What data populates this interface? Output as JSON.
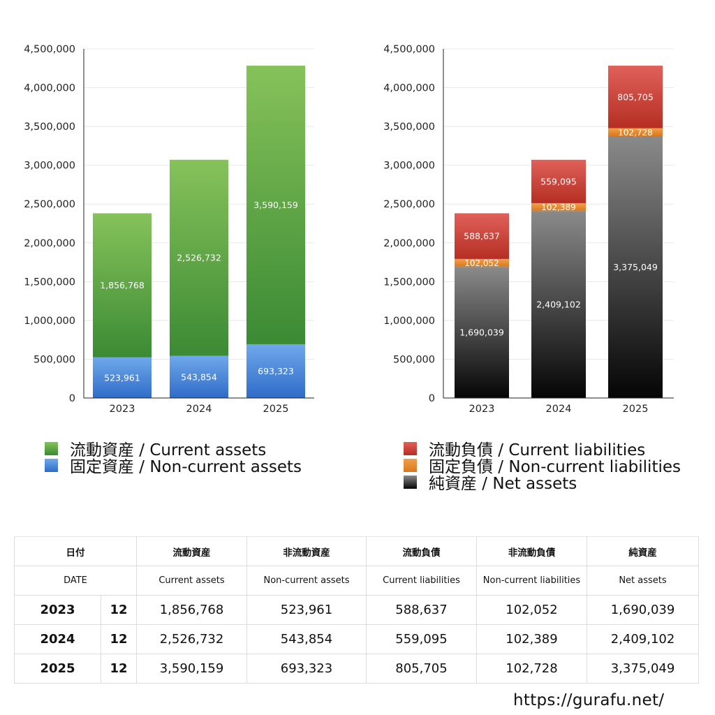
{
  "colors": {
    "current_assets": [
      "#86c25a",
      "#3b8a34"
    ],
    "noncurrent_assets": [
      "#6fa8ea",
      "#2f6cc8"
    ],
    "current_liabilities": [
      "#e0615a",
      "#b52e22"
    ],
    "noncurrent_liabilities": [
      "#f0a048",
      "#d9771e"
    ],
    "net_assets": [
      "#8a8a8a",
      "#050505"
    ],
    "gridline": "#e8e8e8",
    "axis": "#222222"
  },
  "chart_data": [
    {
      "type": "bar",
      "stacked": true,
      "categories": [
        "2023",
        "2024",
        "2025"
      ],
      "ylim": [
        0,
        4500000
      ],
      "yticks": [
        "0",
        "500,000",
        "1,000,000",
        "1,500,000",
        "2,000,000",
        "2,500,000",
        "3,000,000",
        "3,500,000",
        "4,000,000",
        "4,500,000"
      ],
      "grid": true,
      "legend_position": "bottom",
      "series": [
        {
          "name": "固定資産 / Non-current assets",
          "color_key": "noncurrent_assets",
          "values": [
            523961,
            543854,
            693323
          ],
          "labels": [
            "523,961",
            "543,854",
            "693,323"
          ]
        },
        {
          "name": "流動資産 / Current assets",
          "color_key": "current_assets",
          "values": [
            1856768,
            2526732,
            3590159
          ],
          "labels": [
            "1,856,768",
            "2,526,732",
            "3,590,159"
          ]
        }
      ],
      "legend_order": [
        1,
        0
      ]
    },
    {
      "type": "bar",
      "stacked": true,
      "categories": [
        "2023",
        "2024",
        "2025"
      ],
      "ylim": [
        0,
        4500000
      ],
      "yticks": [
        "0",
        "500,000",
        "1,000,000",
        "1,500,000",
        "2,000,000",
        "2,500,000",
        "3,000,000",
        "3,500,000",
        "4,000,000",
        "4,500,000"
      ],
      "grid": true,
      "legend_position": "bottom",
      "series": [
        {
          "name": "純資産 / Net assets",
          "color_key": "net_assets",
          "values": [
            1690039,
            2409102,
            3375049
          ],
          "labels": [
            "1,690,039",
            "2,409,102",
            "3,375,049"
          ]
        },
        {
          "name": "固定負債 / Non-current liabilities",
          "color_key": "noncurrent_liabilities",
          "values": [
            102052,
            102389,
            102728
          ],
          "labels": [
            "102,052",
            "102,389",
            "102,728"
          ]
        },
        {
          "name": "流動負債 / Current liabilities",
          "color_key": "current_liabilities",
          "values": [
            588637,
            559095,
            805705
          ],
          "labels": [
            "588,637",
            "559,095",
            "805,705"
          ]
        }
      ],
      "legend_order": [
        2,
        1,
        0
      ]
    }
  ],
  "table": {
    "header_jp": [
      "日付",
      "流動資産",
      "非流動資産",
      "流動負債",
      "非流動負債",
      "純資産"
    ],
    "header_en": [
      "DATE",
      "Current assets",
      "Non-current assets",
      "Current liabilities",
      "Non-current liabilities",
      "Net assets"
    ],
    "rows": [
      {
        "year": "2023",
        "month": "12",
        "values": [
          "1,856,768",
          "523,961",
          "588,637",
          "102,052",
          "1,690,039"
        ]
      },
      {
        "year": "2024",
        "month": "12",
        "values": [
          "2,526,732",
          "543,854",
          "559,095",
          "102,389",
          "2,409,102"
        ]
      },
      {
        "year": "2025",
        "month": "12",
        "values": [
          "3,590,159",
          "693,323",
          "805,705",
          "102,728",
          "3,375,049"
        ]
      }
    ]
  },
  "footer": {
    "url": "https://gurafu.net/"
  }
}
